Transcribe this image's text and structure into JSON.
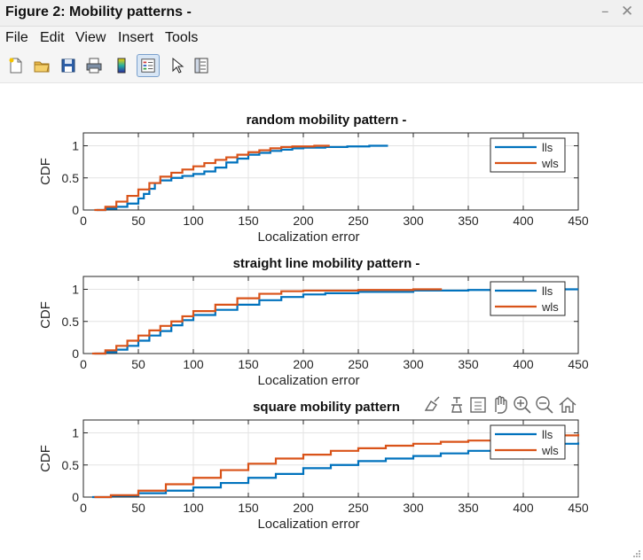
{
  "window": {
    "title": "Figure 2: Mobility patterns -",
    "minimize": "–",
    "close": "✕"
  },
  "menu": [
    "File",
    "Edit",
    "View",
    "Insert",
    "Tools"
  ],
  "toolbar": [
    "new-figure-icon",
    "open-file-icon",
    "save-icon",
    "print-icon",
    "colorbar-icon",
    "legend-icon",
    "pointer-icon",
    "property-inspector-icon"
  ],
  "axes_toolbar": [
    "brush-icon",
    "data-cursor-icon",
    "export-icon",
    "pan-hand-icon",
    "zoom-in-icon",
    "zoom-out-icon",
    "home-icon"
  ],
  "colors": {
    "lls": "#0072BD",
    "wls": "#D95319"
  },
  "chart_data": [
    {
      "type": "line",
      "title": "random mobility pattern -",
      "xlabel": "Localization error",
      "ylabel": "CDF",
      "xlim": [
        0,
        450
      ],
      "ylim": [
        0,
        1.2
      ],
      "xticks": [
        0,
        50,
        100,
        150,
        200,
        250,
        300,
        350,
        400,
        450
      ],
      "yticks": [
        0,
        0.5,
        1
      ],
      "legend": "top-right",
      "series": [
        {
          "name": "lls",
          "x": [
            12,
            20,
            30,
            40,
            50,
            55,
            60,
            65,
            70,
            80,
            90,
            100,
            110,
            120,
            130,
            140,
            150,
            160,
            170,
            180,
            190,
            200,
            220,
            240,
            260,
            277
          ],
          "y": [
            0,
            0.02,
            0.05,
            0.1,
            0.18,
            0.25,
            0.33,
            0.42,
            0.46,
            0.5,
            0.53,
            0.56,
            0.6,
            0.66,
            0.74,
            0.8,
            0.86,
            0.89,
            0.92,
            0.94,
            0.96,
            0.97,
            0.98,
            0.99,
            1.0,
            1.0
          ]
        },
        {
          "name": "wls",
          "x": [
            10,
            20,
            30,
            40,
            50,
            60,
            70,
            80,
            90,
            100,
            110,
            120,
            130,
            140,
            150,
            160,
            170,
            180,
            190,
            200,
            210,
            224
          ],
          "y": [
            0,
            0.05,
            0.13,
            0.22,
            0.32,
            0.42,
            0.52,
            0.58,
            0.63,
            0.68,
            0.73,
            0.78,
            0.82,
            0.86,
            0.9,
            0.93,
            0.96,
            0.98,
            0.99,
            0.99,
            1.0,
            1.0
          ]
        }
      ]
    },
    {
      "type": "line",
      "title": "straight line mobility pattern -",
      "xlabel": "Localization error",
      "ylabel": "CDF",
      "xlim": [
        0,
        450
      ],
      "ylim": [
        0,
        1.2
      ],
      "xticks": [
        0,
        50,
        100,
        150,
        200,
        250,
        300,
        350,
        400,
        450
      ],
      "yticks": [
        0,
        0.5,
        1
      ],
      "legend": "top-right",
      "series": [
        {
          "name": "lls",
          "x": [
            10,
            20,
            30,
            40,
            50,
            60,
            70,
            80,
            90,
            100,
            120,
            140,
            160,
            180,
            200,
            220,
            250,
            300,
            350,
            400,
            450
          ],
          "y": [
            0,
            0.02,
            0.06,
            0.12,
            0.2,
            0.28,
            0.35,
            0.44,
            0.52,
            0.6,
            0.68,
            0.76,
            0.83,
            0.88,
            0.92,
            0.94,
            0.96,
            0.98,
            0.99,
            1.0,
            1.0
          ]
        },
        {
          "name": "wls",
          "x": [
            8,
            20,
            30,
            40,
            50,
            60,
            70,
            80,
            90,
            100,
            120,
            140,
            160,
            180,
            200,
            250,
            300,
            326
          ],
          "y": [
            0,
            0.05,
            0.12,
            0.2,
            0.28,
            0.36,
            0.43,
            0.5,
            0.58,
            0.66,
            0.76,
            0.86,
            0.93,
            0.97,
            0.98,
            0.99,
            1.0,
            1.0
          ]
        }
      ]
    },
    {
      "type": "line",
      "title": "square mobility pattern",
      "xlabel": "Localization error",
      "ylabel": "CDF",
      "xlim": [
        0,
        450
      ],
      "ylim": [
        0,
        1.2
      ],
      "xticks": [
        0,
        50,
        100,
        150,
        200,
        250,
        300,
        350,
        400,
        450
      ],
      "yticks": [
        0,
        0.5,
        1
      ],
      "legend": "top-right",
      "series": [
        {
          "name": "lls",
          "x": [
            8,
            25,
            50,
            75,
            100,
            125,
            150,
            175,
            200,
            225,
            250,
            275,
            300,
            325,
            350,
            375,
            400,
            425,
            450
          ],
          "y": [
            0,
            0.02,
            0.06,
            0.1,
            0.15,
            0.22,
            0.3,
            0.36,
            0.45,
            0.5,
            0.56,
            0.6,
            0.64,
            0.68,
            0.72,
            0.76,
            0.8,
            0.83,
            0.85
          ]
        },
        {
          "name": "wls",
          "x": [
            10,
            25,
            50,
            75,
            100,
            125,
            150,
            175,
            200,
            225,
            250,
            275,
            300,
            325,
            350,
            375,
            400,
            425,
            450
          ],
          "y": [
            0,
            0.03,
            0.1,
            0.2,
            0.3,
            0.42,
            0.52,
            0.6,
            0.66,
            0.72,
            0.76,
            0.8,
            0.83,
            0.86,
            0.88,
            0.9,
            0.93,
            0.96,
            0.98
          ]
        }
      ]
    }
  ]
}
